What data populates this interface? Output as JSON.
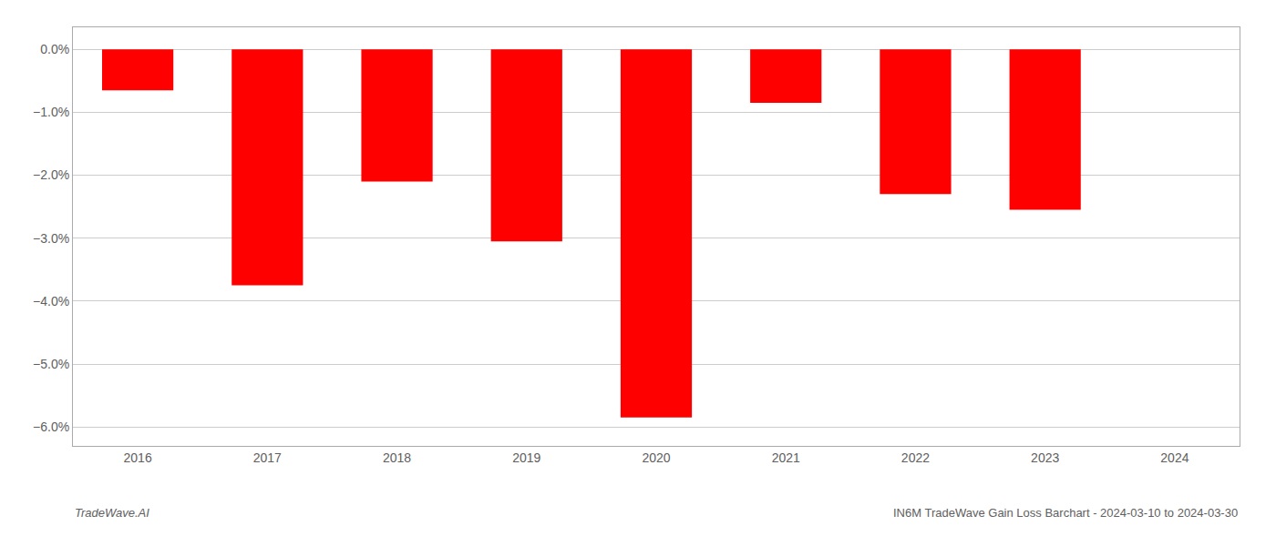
{
  "chart_data": {
    "type": "bar",
    "categories": [
      "2016",
      "2017",
      "2018",
      "2019",
      "2020",
      "2021",
      "2022",
      "2023",
      "2024"
    ],
    "values": [
      -0.65,
      -3.75,
      -2.1,
      -3.05,
      -5.85,
      -0.85,
      -2.3,
      -2.55,
      null
    ],
    "color": "#ff0000",
    "ylim": [
      -6.3,
      0.35
    ],
    "yticks": [
      {
        "value": 0.0,
        "label": "0.0%"
      },
      {
        "value": -1.0,
        "label": "−1.0%"
      },
      {
        "value": -2.0,
        "label": "−2.0%"
      },
      {
        "value": -3.0,
        "label": "−3.0%"
      },
      {
        "value": -4.0,
        "label": "−4.0%"
      },
      {
        "value": -5.0,
        "label": "−5.0%"
      },
      {
        "value": -6.0,
        "label": "−6.0%"
      }
    ],
    "grid": true,
    "annotations": [
      "TradeWave.AI",
      "IN6M TradeWave Gain Loss Barchart - 2024-03-10 to 2024-03-30"
    ]
  }
}
